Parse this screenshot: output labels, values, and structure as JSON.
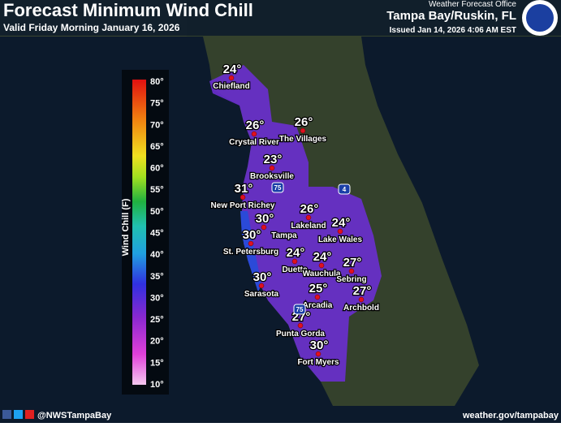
{
  "header": {
    "title": "Forecast Minimum Wind Chill",
    "subtitle": "Valid Friday Morning January 16, 2026",
    "office_label": "Weather Forecast Office",
    "office": "Tampa Bay/Ruskin, FL",
    "issued": "Issued Jan 14, 2026 4:06 AM EST"
  },
  "legend": {
    "title": "Wind Chill (F)",
    "ticks": [
      "80°",
      "75°",
      "70°",
      "65°",
      "60°",
      "55°",
      "50°",
      "45°",
      "40°",
      "35°",
      "30°",
      "25°",
      "20°",
      "15°",
      "10°"
    ]
  },
  "cities": [
    {
      "name": "Chiefland",
      "temp": "24°"
    },
    {
      "name": "Crystal River",
      "temp": "26°"
    },
    {
      "name": "The Villages",
      "temp": "26°"
    },
    {
      "name": "Brooksville",
      "temp": "23°"
    },
    {
      "name": "New Port Richey",
      "temp": "31°"
    },
    {
      "name": "Tampa",
      "temp": "30°"
    },
    {
      "name": "St. Petersburg",
      "temp": "30°"
    },
    {
      "name": "Lakeland",
      "temp": "26°"
    },
    {
      "name": "Lake Wales",
      "temp": "24°"
    },
    {
      "name": "Duette",
      "temp": "24°"
    },
    {
      "name": "Wauchula",
      "temp": "24°"
    },
    {
      "name": "Sebring",
      "temp": "27°"
    },
    {
      "name": "Sarasota",
      "temp": "30°"
    },
    {
      "name": "Arcadia",
      "temp": "25°"
    },
    {
      "name": "Archbold",
      "temp": "27°"
    },
    {
      "name": "Punta Gorda",
      "temp": "27°"
    },
    {
      "name": "Fort Myers",
      "temp": "30°"
    }
  ],
  "highways": [
    "75",
    "4",
    "75"
  ],
  "footer": {
    "handle": "@NWSTampaBay",
    "url": "weather.gov/tampabay"
  }
}
